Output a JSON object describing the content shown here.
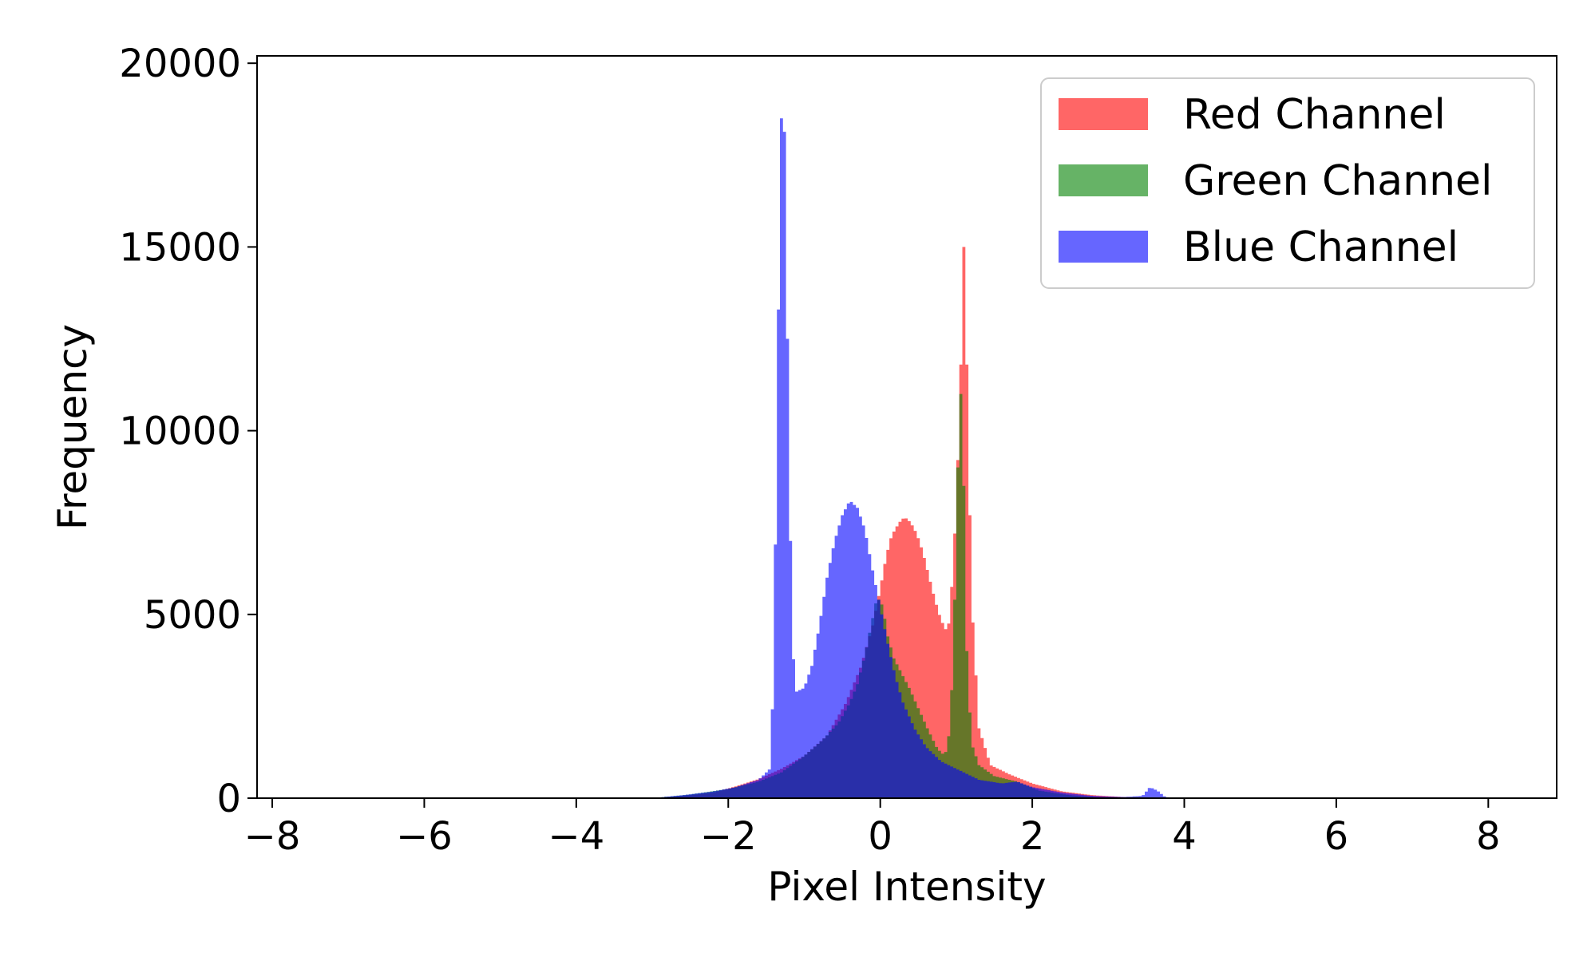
{
  "chart_data": {
    "type": "bar",
    "subtype": "histogram-overlay",
    "title": "",
    "xlabel": "Pixel Intensity",
    "ylabel": "Frequency",
    "xlim": [
      -8.2,
      8.9
    ],
    "ylim": [
      0,
      20200
    ],
    "xticks": [
      -8,
      -6,
      -4,
      -2,
      0,
      2,
      4,
      6,
      8
    ],
    "xtick_labels": [
      "−8",
      "−6",
      "−4",
      "−2",
      "0",
      "2",
      "4",
      "6",
      "8"
    ],
    "yticks": [
      0,
      5000,
      10000,
      15000,
      20000
    ],
    "ytick_labels": [
      "0",
      "5000",
      "10000",
      "15000",
      "20000"
    ],
    "grid": false,
    "legend_position": "top-right",
    "opacity": 0.6,
    "series": [
      {
        "name": "Red Channel",
        "color": "#ff0000",
        "points": [
          [
            -3.0,
            0
          ],
          [
            -2.6,
            60
          ],
          [
            -2.2,
            150
          ],
          [
            -1.9,
            320
          ],
          [
            -1.6,
            520
          ],
          [
            -1.3,
            800
          ],
          [
            -1.0,
            1150
          ],
          [
            -0.7,
            1700
          ],
          [
            -0.45,
            2600
          ],
          [
            -0.25,
            3600
          ],
          [
            -0.1,
            4700
          ],
          [
            0.0,
            5700
          ],
          [
            0.08,
            6600
          ],
          [
            0.15,
            7150
          ],
          [
            0.25,
            7500
          ],
          [
            0.32,
            7650
          ],
          [
            0.4,
            7500
          ],
          [
            0.48,
            7200
          ],
          [
            0.56,
            6700
          ],
          [
            0.64,
            6050
          ],
          [
            0.72,
            5400
          ],
          [
            0.8,
            4850
          ],
          [
            0.86,
            4600
          ],
          [
            0.9,
            4750
          ],
          [
            0.95,
            6000
          ],
          [
            1.0,
            8000
          ],
          [
            1.05,
            11000
          ],
          [
            1.1,
            15000
          ],
          [
            1.15,
            11000
          ],
          [
            1.2,
            5500
          ],
          [
            1.3,
            1900
          ],
          [
            1.45,
            900
          ],
          [
            1.7,
            650
          ],
          [
            2.0,
            400
          ],
          [
            2.4,
            180
          ],
          [
            2.8,
            80
          ],
          [
            3.2,
            30
          ],
          [
            3.6,
            0
          ]
        ]
      },
      {
        "name": "Green Channel",
        "color": "#008000",
        "points": [
          [
            -3.0,
            0
          ],
          [
            -2.5,
            100
          ],
          [
            -2.0,
            250
          ],
          [
            -1.6,
            450
          ],
          [
            -1.3,
            700
          ],
          [
            -1.0,
            1150
          ],
          [
            -0.75,
            1600
          ],
          [
            -0.55,
            2050
          ],
          [
            -0.4,
            2600
          ],
          [
            -0.3,
            3100
          ],
          [
            -0.2,
            3900
          ],
          [
            -0.12,
            4700
          ],
          [
            -0.06,
            5300
          ],
          [
            0.0,
            5450
          ],
          [
            0.05,
            5000
          ],
          [
            0.1,
            4400
          ],
          [
            0.18,
            3800
          ],
          [
            0.28,
            3400
          ],
          [
            0.38,
            3000
          ],
          [
            0.5,
            2450
          ],
          [
            0.62,
            1900
          ],
          [
            0.75,
            1350
          ],
          [
            0.85,
            1150
          ],
          [
            0.92,
            1900
          ],
          [
            0.97,
            4500
          ],
          [
            1.02,
            9000
          ],
          [
            1.06,
            11000
          ],
          [
            1.1,
            8500
          ],
          [
            1.14,
            4000
          ],
          [
            1.2,
            1500
          ],
          [
            1.3,
            900
          ],
          [
            1.5,
            600
          ],
          [
            1.8,
            450
          ],
          [
            2.1,
            200
          ],
          [
            2.5,
            80
          ],
          [
            3.0,
            0
          ]
        ]
      },
      {
        "name": "Blue Channel",
        "color": "#0000ff",
        "points": [
          [
            -3.0,
            0
          ],
          [
            -2.6,
            80
          ],
          [
            -2.2,
            180
          ],
          [
            -1.9,
            300
          ],
          [
            -1.6,
            500
          ],
          [
            -1.45,
            800
          ],
          [
            -1.4,
            3500
          ],
          [
            -1.35,
            12000
          ],
          [
            -1.3,
            18500
          ],
          [
            -1.27,
            19200
          ],
          [
            -1.24,
            16000
          ],
          [
            -1.2,
            9000
          ],
          [
            -1.15,
            4000
          ],
          [
            -1.1,
            2900
          ],
          [
            -1.0,
            3000
          ],
          [
            -0.9,
            3600
          ],
          [
            -0.8,
            4700
          ],
          [
            -0.7,
            6000
          ],
          [
            -0.6,
            7000
          ],
          [
            -0.5,
            7700
          ],
          [
            -0.4,
            8100
          ],
          [
            -0.3,
            7900
          ],
          [
            -0.2,
            7300
          ],
          [
            -0.1,
            6200
          ],
          [
            0.0,
            5200
          ],
          [
            0.1,
            4200
          ],
          [
            0.2,
            3300
          ],
          [
            0.3,
            2600
          ],
          [
            0.45,
            1900
          ],
          [
            0.6,
            1400
          ],
          [
            0.8,
            1000
          ],
          [
            1.0,
            800
          ],
          [
            1.3,
            500
          ],
          [
            1.6,
            400
          ],
          [
            1.8,
            450
          ],
          [
            2.0,
            300
          ],
          [
            2.4,
            150
          ],
          [
            2.8,
            60
          ],
          [
            3.2,
            30
          ],
          [
            3.45,
            60
          ],
          [
            3.55,
            300
          ],
          [
            3.65,
            200
          ],
          [
            3.75,
            30
          ],
          [
            3.9,
            0
          ]
        ]
      }
    ]
  }
}
